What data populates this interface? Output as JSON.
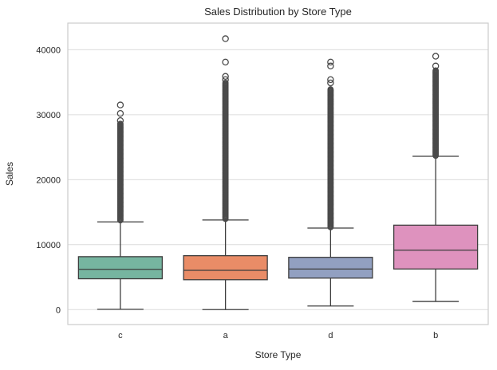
{
  "figure": {
    "title": "Sales Distribution by Store Type",
    "xlabel": "Store Type",
    "ylabel": "Sales"
  },
  "chart_data": {
    "type": "boxplot",
    "title": "Sales Distribution by Store Type",
    "xlabel": "Store Type",
    "ylabel": "Sales",
    "categories": [
      "c",
      "a",
      "d",
      "b"
    ],
    "yticks": [
      0,
      10000,
      20000,
      30000,
      40000
    ],
    "ytick_labels": [
      "0",
      "10000",
      "20000",
      "30000",
      "40000"
    ],
    "ylim": [
      -2300,
      44100
    ],
    "grid": "horizontal",
    "legend": false,
    "series": [
      {
        "category": "c",
        "color": "#76b5a0",
        "whisker_low": 50,
        "q1": 4750,
        "median": 6200,
        "q3": 8150,
        "whisker_high": 13500,
        "outliers_dense_range": [
          13650,
          28600
        ],
        "outliers_distinct": [
          29100,
          30200,
          31500
        ]
      },
      {
        "category": "a",
        "color": "#e98c67",
        "whisker_low": 0,
        "q1": 4600,
        "median": 6050,
        "q3": 8300,
        "whisker_high": 13800,
        "outliers_dense_range": [
          13900,
          34900
        ],
        "outliers_distinct": [
          35400,
          35900,
          38100,
          41700
        ]
      },
      {
        "category": "d",
        "color": "#92a0c1",
        "whisker_low": 550,
        "q1": 4850,
        "median": 6250,
        "q3": 8050,
        "whisker_high": 12550,
        "outliers_dense_range": [
          12700,
          33900
        ],
        "outliers_distinct": [
          34900,
          35400,
          37500,
          38100
        ]
      },
      {
        "category": "b",
        "color": "#de92be",
        "whisker_low": 1250,
        "q1": 6250,
        "median": 9150,
        "q3": 13000,
        "whisker_high": 23600,
        "outliers_dense_range": [
          23700,
          36800
        ],
        "outliers_distinct": [
          37500,
          39000
        ]
      }
    ],
    "style": {
      "box_edge_color": "#3d3d3d",
      "outlier_color": "#4a4a4a",
      "grid_color": "#dcdcdc",
      "spine_color": "#cccccc",
      "text_color": "#262626",
      "background": "#ffffff"
    }
  }
}
